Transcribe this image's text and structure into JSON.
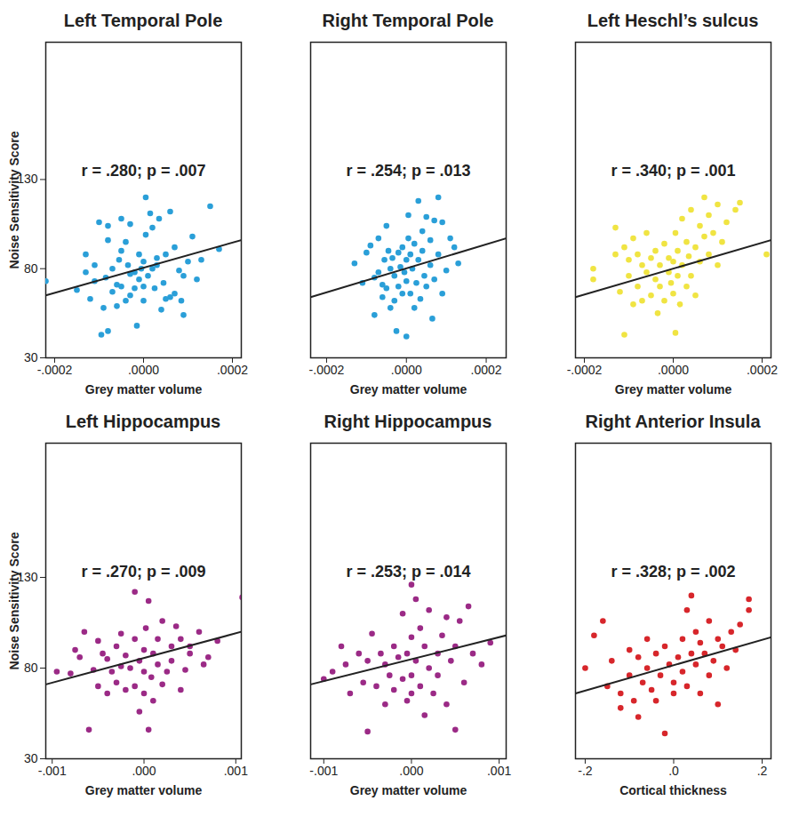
{
  "chart_data": [
    {
      "type": "scatter",
      "title": "Left Temporal Pole",
      "annotation": "r = .280; p = .007",
      "x_label": "Grey matter volume",
      "y_label": "Noise Sensitivity Score",
      "color": "#2a9fd8",
      "xlim": [
        -0.00022,
        0.00022
      ],
      "xticks": [
        {
          "value": -0.0002,
          "label": "-.0002"
        },
        {
          "value": 0,
          "label": ".0000"
        },
        {
          "value": 0.0002,
          "label": ".0002"
        }
      ],
      "ylim": [
        30,
        207
      ],
      "yticks": [
        30,
        80,
        130
      ],
      "x": [
        -0.00022,
        -0.00015,
        -0.00013,
        -0.00013,
        -0.00012,
        -0.00011,
        -0.00011,
        -0.0001,
        -9.5e-05,
        -9e-05,
        -8.5e-05,
        -8e-05,
        -8e-05,
        -8e-05,
        -7e-05,
        -7e-05,
        -6e-05,
        -6e-05,
        -5.5e-05,
        -5e-05,
        -5e-05,
        -5e-05,
        -4e-05,
        -4e-05,
        -3.5e-05,
        -3e-05,
        -3e-05,
        -3e-05,
        -2e-05,
        -2e-05,
        -1.5e-05,
        -1e-05,
        -1e-05,
        -5e-06,
        0,
        0,
        0,
        5e-06,
        5e-06,
        1e-05,
        1.5e-05,
        2e-05,
        2e-05,
        2.5e-05,
        3e-05,
        3e-05,
        3.5e-05,
        4e-05,
        4.5e-05,
        5e-05,
        5e-05,
        6e-05,
        6e-05,
        7e-05,
        7e-05,
        8e-05,
        8.5e-05,
        9e-05,
        9e-05,
        0.0001,
        0.00011,
        0.00012,
        0.00013,
        0.00015,
        0.00017
      ],
      "values": [
        73,
        68,
        88,
        78,
        63,
        73,
        82,
        106,
        43,
        58,
        75,
        45,
        96,
        104,
        80,
        67,
        59,
        71,
        85,
        90,
        70,
        108,
        62,
        95,
        82,
        77,
        65,
        105,
        78,
        69,
        48,
        88,
        74,
        80,
        62,
        70,
        84,
        99,
        120,
        76,
        111,
        103,
        80,
        69,
        86,
        82,
        108,
        57,
        72,
        88,
        63,
        64,
        112,
        66,
        92,
        79,
        62,
        54,
        76,
        84,
        98,
        74,
        85,
        115,
        91
      ],
      "fit_line": {
        "x": [
          -0.00022,
          0.00022
        ],
        "values": [
          65,
          96
        ]
      }
    },
    {
      "type": "scatter",
      "title": "Right Temporal Pole",
      "annotation": "r = .254; p = .013",
      "x_label": "Grey matter volume",
      "color": "#2a9fd8",
      "tick_labels": "x",
      "xlim": [
        -0.00024,
        0.00025
      ],
      "xticks": [
        {
          "value": -0.0002,
          "label": "-.0002"
        },
        {
          "value": 0,
          "label": ".0000"
        },
        {
          "value": 0.0002,
          "label": ".0002"
        }
      ],
      "ylim": [
        30,
        207
      ],
      "x": [
        -0.00013,
        -0.00011,
        -0.0001,
        -9e-05,
        -8e-05,
        -8e-05,
        -7e-05,
        -7e-05,
        -6e-05,
        -6e-05,
        -5.5e-05,
        -5e-05,
        -5e-05,
        -4.5e-05,
        -4e-05,
        -4e-05,
        -3.5e-05,
        -3e-05,
        -3e-05,
        -2.5e-05,
        -2e-05,
        -2e-05,
        -1.5e-05,
        -1e-05,
        -1e-05,
        -5e-06,
        0,
        0,
        0,
        5e-06,
        5e-06,
        1e-05,
        1e-05,
        1.5e-05,
        2e-05,
        2e-05,
        2.5e-05,
        3e-05,
        3e-05,
        3.5e-05,
        4e-05,
        4e-05,
        4.5e-05,
        5e-05,
        5e-05,
        6e-05,
        6e-05,
        6.5e-05,
        7e-05,
        7e-05,
        8e-05,
        8e-05,
        9e-05,
        9e-05,
        0.0001,
        0.00011,
        0.00012,
        0.00013
      ],
      "values": [
        83,
        72,
        89,
        93,
        54,
        75,
        97,
        78,
        71,
        64,
        85,
        104,
        69,
        90,
        58,
        80,
        86,
        76,
        62,
        45,
        89,
        70,
        81,
        92,
        66,
        78,
        42,
        85,
        73,
        110,
        97,
        88,
        66,
        80,
        58,
        94,
        72,
        118,
        85,
        63,
        101,
        90,
        76,
        109,
        70,
        96,
        82,
        52,
        107,
        74,
        120,
        88,
        106,
        66,
        79,
        97,
        92,
        83
      ],
      "fit_line": {
        "x": [
          -0.00024,
          0.00025
        ],
        "values": [
          64,
          97
        ]
      }
    },
    {
      "type": "scatter",
      "title": "Left Heschl’s sulcus",
      "annotation": "r = .340; p = .001",
      "x_label": "Grey matter volume",
      "color": "#f0e442",
      "tick_labels": "x",
      "xlim": [
        -0.00022,
        0.00022
      ],
      "xticks": [
        {
          "value": -0.0002,
          "label": "-.0002"
        },
        {
          "value": 0,
          "label": ".0000"
        },
        {
          "value": 0.0002,
          "label": ".0002"
        }
      ],
      "ylim": [
        30,
        207
      ],
      "x": [
        -0.00018,
        -0.00018,
        -0.00013,
        -0.00013,
        -0.00012,
        -0.00011,
        -0.00011,
        -0.0001,
        -0.0001,
        -9e-05,
        -9e-05,
        -8e-05,
        -8e-05,
        -7e-05,
        -7e-05,
        -6e-05,
        -6e-05,
        -5e-05,
        -5e-05,
        -4e-05,
        -4e-05,
        -3.5e-05,
        -3e-05,
        -3e-05,
        -2e-05,
        -2e-05,
        -1e-05,
        -1e-05,
        -5e-06,
        0,
        0,
        5e-06,
        5e-06,
        1e-05,
        1e-05,
        1.5e-05,
        2e-05,
        2e-05,
        3e-05,
        3e-05,
        3.5e-05,
        4e-05,
        4e-05,
        5e-05,
        5e-05,
        6e-05,
        6e-05,
        7e-05,
        7e-05,
        8e-05,
        8e-05,
        9e-05,
        0.0001,
        0.0001,
        0.00011,
        0.00012,
        0.00014,
        0.00015,
        0.00021
      ],
      "values": [
        74,
        80,
        88,
        103,
        67,
        92,
        43,
        85,
        76,
        60,
        97,
        88,
        70,
        82,
        62,
        100,
        78,
        86,
        65,
        74,
        90,
        55,
        82,
        70,
        94,
        62,
        78,
        86,
        72,
        66,
        84,
        100,
        44,
        76,
        90,
        60,
        108,
        82,
        70,
        95,
        87,
        113,
        76,
        92,
        65,
        104,
        84,
        120,
        98,
        88,
        110,
        100,
        116,
        82,
        95,
        106,
        113,
        117,
        88
      ],
      "fit_line": {
        "x": [
          -0.00022,
          0.00022
        ],
        "values": [
          64,
          96
        ]
      }
    },
    {
      "type": "scatter",
      "title": "Left Hippocampus",
      "annotation": "r = .270; p = .009",
      "x_label": "Grey matter volume",
      "y_label": "Noise Sensitivity Score",
      "color": "#9b2a86",
      "xlim": [
        -0.00107,
        0.00106
      ],
      "xticks": [
        {
          "value": -0.001,
          "label": "-.001"
        },
        {
          "value": 0,
          "label": ".000"
        },
        {
          "value": 0.001,
          "label": ".001"
        }
      ],
      "ylim": [
        30,
        204
      ],
      "yticks": [
        30,
        80,
        130
      ],
      "x": [
        -0.00095,
        -0.0008,
        -0.00075,
        -0.0007,
        -0.00065,
        -0.0006,
        -0.00055,
        -0.0005,
        -0.0005,
        -0.00045,
        -0.0004,
        -0.0004,
        -0.00035,
        -0.0003,
        -0.0003,
        -0.00025,
        -0.00025,
        -0.0002,
        -0.0002,
        -0.00015,
        -0.0001,
        -0.0001,
        -0.0001,
        -5e-05,
        -5e-05,
        0,
        0,
        0,
        2e-05,
        5e-05,
        5e-05,
        8e-05,
        0.0001,
        0.0001,
        0.00015,
        0.00015,
        0.0002,
        0.0002,
        0.00025,
        0.0003,
        0.0003,
        0.00035,
        0.0004,
        0.0004,
        0.00045,
        0.0005,
        0.0005,
        0.0006,
        0.00065,
        0.0007,
        0.0008,
        0.00107
      ],
      "values": [
        78,
        77,
        90,
        86,
        100,
        46,
        79,
        95,
        70,
        88,
        85,
        66,
        78,
        92,
        72,
        99,
        81,
        68,
        87,
        80,
        122,
        96,
        70,
        84,
        56,
        78,
        66,
        90,
        102,
        46,
        117,
        75,
        88,
        62,
        82,
        96,
        106,
        71,
        78,
        92,
        84,
        103,
        96,
        68,
        79,
        92,
        88,
        100,
        82,
        86,
        95,
        119
      ],
      "fit_line": {
        "x": [
          -0.00107,
          0.00106
        ],
        "values": [
          71,
          100
        ]
      }
    },
    {
      "type": "scatter",
      "title": "Right Hippocampus",
      "annotation": "r = .253; p = .014",
      "x_label": "Grey matter volume",
      "color": "#9b2a86",
      "tick_labels": "x",
      "xlim": [
        -0.00115,
        0.00108
      ],
      "xticks": [
        {
          "value": -0.001,
          "label": "-.001"
        },
        {
          "value": 0,
          "label": ".000"
        },
        {
          "value": 0.001,
          "label": ".001"
        }
      ],
      "ylim": [
        30,
        204
      ],
      "x": [
        -0.001,
        -0.0009,
        -0.0008,
        -0.00075,
        -0.0007,
        -0.0006,
        -0.00055,
        -0.0005,
        -0.0005,
        -0.00045,
        -0.0004,
        -0.00035,
        -0.0003,
        -0.0003,
        -0.00025,
        -0.0002,
        -0.0002,
        -0.00015,
        -0.0001,
        -0.0001,
        -5e-05,
        -5e-05,
        0,
        0,
        0,
        0,
        5e-05,
        5e-05,
        0.0001,
        0.0001,
        0.00015,
        0.00015,
        0.0002,
        0.0002,
        0.00025,
        0.0003,
        0.0003,
        0.00035,
        0.0004,
        0.0004,
        0.00045,
        0.0005,
        0.0005,
        0.00055,
        0.0006,
        0.00065,
        0.0007,
        0.0008,
        0.0009
      ],
      "values": [
        74,
        78,
        92,
        82,
        66,
        88,
        72,
        45,
        84,
        99,
        70,
        88,
        82,
        60,
        76,
        92,
        68,
        86,
        74,
        110,
        62,
        88,
        126,
        97,
        76,
        66,
        118,
        84,
        70,
        102,
        92,
        54,
        80,
        112,
        66,
        88,
        76,
        98,
        108,
        60,
        84,
        92,
        46,
        106,
        72,
        114,
        88,
        82,
        94
      ],
      "fit_line": {
        "x": [
          -0.00115,
          0.00108
        ],
        "values": [
          71,
          98
        ]
      }
    },
    {
      "type": "scatter",
      "title": "Right Anterior Insula",
      "annotation": "r = .328; p = .002",
      "x_label": "Cortical thickness",
      "color": "#d7262b",
      "tick_labels": "x",
      "xlim": [
        -0.222,
        0.22
      ],
      "xticks": [
        {
          "value": -0.2,
          "label": "-.2"
        },
        {
          "value": 0,
          "label": ".0"
        },
        {
          "value": 0.2,
          "label": ".2"
        }
      ],
      "ylim": [
        30,
        204
      ],
      "x": [
        -0.2,
        -0.18,
        -0.16,
        -0.15,
        -0.14,
        -0.12,
        -0.12,
        -0.1,
        -0.1,
        -0.09,
        -0.08,
        -0.08,
        -0.07,
        -0.06,
        -0.06,
        -0.05,
        -0.04,
        -0.04,
        -0.03,
        -0.02,
        -0.02,
        -0.01,
        0,
        0,
        0.01,
        0.02,
        0.02,
        0.03,
        0.03,
        0.04,
        0.04,
        0.05,
        0.05,
        0.06,
        0.06,
        0.07,
        0.08,
        0.08,
        0.09,
        0.1,
        0.1,
        0.11,
        0.12,
        0.13,
        0.14,
        0.15,
        0.17,
        0.17
      ],
      "values": [
        80,
        98,
        106,
        70,
        84,
        66,
        58,
        90,
        76,
        62,
        86,
        53,
        72,
        96,
        80,
        68,
        88,
        62,
        76,
        92,
        44,
        82,
        72,
        66,
        86,
        96,
        78,
        70,
        112,
        88,
        120,
        82,
        100,
        66,
        94,
        88,
        76,
        106,
        84,
        96,
        60,
        92,
        80,
        100,
        90,
        104,
        112,
        118
      ],
      "fit_line": {
        "x": [
          -0.222,
          0.22
        ],
        "values": [
          66,
          97
        ]
      }
    }
  ]
}
